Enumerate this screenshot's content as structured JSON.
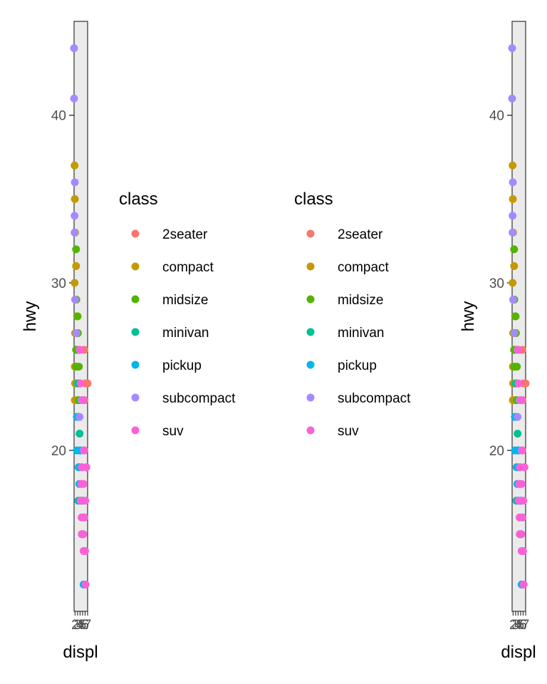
{
  "chart_data": [
    {
      "type": "scatter",
      "xlabel": "displ",
      "ylabel": "hwy",
      "ylim": [
        10.4,
        45.6
      ],
      "xlim": [
        1.6,
        7.0
      ],
      "yticks": [
        20,
        30,
        40
      ],
      "xticks": [
        2,
        3,
        4,
        5,
        6,
        7
      ],
      "xtick_labels": [
        "2",
        "3",
        "4",
        "5",
        "6",
        "7"
      ],
      "grid": false,
      "background": "#ebebeb",
      "legend": {
        "title": "class",
        "placement": "right"
      },
      "series": [
        {
          "name": "2seater",
          "color": "#F8766D",
          "x": [
            5.7,
            6.2,
            7.0,
            5.7
          ],
          "y": [
            26,
            24,
            24,
            23
          ]
        },
        {
          "name": "compact",
          "color": "#C49A00",
          "x": [
            1.8,
            1.9,
            2.0,
            2.4,
            1.8,
            2.2,
            2.8,
            3.1,
            2.0,
            2.5,
            1.9,
            2.0,
            1.9,
            2.8
          ],
          "y": [
            37,
            35,
            33,
            31,
            30,
            29,
            28,
            27,
            27,
            26,
            25,
            24,
            23,
            23
          ]
        },
        {
          "name": "midsize",
          "color": "#53B400",
          "x": [
            2.4,
            2.5,
            3.0,
            3.1,
            2.4,
            3.3,
            2.5,
            3.5,
            3.8,
            3.5
          ],
          "y": [
            32,
            29,
            28,
            27,
            26,
            26,
            25,
            25,
            24,
            23
          ]
        },
        {
          "name": "minivan",
          "color": "#00C094",
          "x": [
            3.0,
            3.3,
            3.8,
            4.0,
            3.3
          ],
          "y": [
            24,
            22,
            21,
            20,
            17
          ]
        },
        {
          "name": "pickup",
          "color": "#00B6EB",
          "x": [
            2.7,
            2.7,
            3.4,
            3.7,
            3.9,
            4.7,
            4.7,
            5.2,
            5.7,
            3.7,
            4.7,
            5.2,
            5.4,
            4.0
          ],
          "y": [
            22,
            20,
            19,
            18,
            17,
            19,
            17,
            17,
            16,
            19,
            15,
            15,
            12,
            20
          ]
        },
        {
          "name": "subcompact",
          "color": "#A58AFF",
          "x": [
            1.6,
            1.6,
            1.9,
            1.8,
            1.8,
            2.0,
            2.5,
            3.8,
            4.6,
            5.4,
            3.8
          ],
          "y": [
            44,
            41,
            36,
            34,
            33,
            29,
            27,
            26,
            23,
            20,
            22
          ]
        },
        {
          "name": "suv",
          "color": "#FB61D7",
          "x": [
            4.0,
            4.2,
            5.3,
            5.7,
            6.5,
            4.7,
            5.4,
            6.1,
            4.2,
            4.4,
            4.6,
            5.0,
            5.4,
            6.0,
            6.2,
            4.7,
            5.3,
            6.5,
            5.7,
            4.6
          ],
          "y": [
            26,
            24,
            23,
            20,
            19,
            19,
            18,
            17,
            17,
            18,
            16,
            15,
            14,
            14,
            12,
            15,
            15,
            19,
            16,
            18
          ]
        }
      ]
    },
    {
      "type": "scatter",
      "xlabel": "displ",
      "ylabel": "hwy",
      "ylim": [
        10.4,
        45.6
      ],
      "xlim": [
        1.6,
        7.0
      ],
      "yticks": [
        20,
        30,
        40
      ],
      "xticks": [
        2,
        3,
        4,
        5,
        6,
        7
      ],
      "xtick_labels": [
        "2",
        "3",
        "4",
        "5",
        "6",
        "7"
      ],
      "grid": false,
      "background": "#ebebeb",
      "legend": {
        "title": "class",
        "placement": "left"
      },
      "series": [
        {
          "name": "2seater",
          "color": "#F8766D",
          "x": [
            5.7,
            6.2,
            7.0,
            5.7
          ],
          "y": [
            26,
            24,
            24,
            23
          ]
        },
        {
          "name": "compact",
          "color": "#C49A00",
          "x": [
            1.8,
            1.9,
            2.0,
            2.4,
            1.8,
            2.2,
            2.8,
            3.1,
            2.0,
            2.5,
            1.9,
            2.0,
            1.9,
            2.8
          ],
          "y": [
            37,
            35,
            33,
            31,
            30,
            29,
            28,
            27,
            27,
            26,
            25,
            24,
            23,
            23
          ]
        },
        {
          "name": "midsize",
          "color": "#53B400",
          "x": [
            2.4,
            2.5,
            3.0,
            3.1,
            2.4,
            3.3,
            2.5,
            3.5,
            3.8,
            3.5
          ],
          "y": [
            32,
            29,
            28,
            27,
            26,
            26,
            25,
            25,
            24,
            23
          ]
        },
        {
          "name": "minivan",
          "color": "#00C094",
          "x": [
            3.0,
            3.3,
            3.8,
            4.0,
            3.3
          ],
          "y": [
            24,
            22,
            21,
            20,
            17
          ]
        },
        {
          "name": "pickup",
          "color": "#00B6EB",
          "x": [
            2.7,
            2.7,
            3.4,
            3.7,
            3.9,
            4.7,
            4.7,
            5.2,
            5.7,
            3.7,
            4.7,
            5.2,
            5.4,
            4.0
          ],
          "y": [
            22,
            20,
            19,
            18,
            17,
            19,
            17,
            17,
            16,
            19,
            15,
            15,
            12,
            20
          ]
        },
        {
          "name": "subcompact",
          "color": "#A58AFF",
          "x": [
            1.6,
            1.6,
            1.9,
            1.8,
            1.8,
            2.0,
            2.5,
            3.8,
            4.6,
            5.4,
            3.8
          ],
          "y": [
            44,
            41,
            36,
            34,
            33,
            29,
            27,
            26,
            23,
            20,
            22
          ]
        },
        {
          "name": "suv",
          "color": "#FB61D7",
          "x": [
            4.0,
            4.2,
            5.3,
            5.7,
            6.5,
            4.7,
            5.4,
            6.1,
            4.2,
            4.4,
            4.6,
            5.0,
            5.4,
            6.0,
            6.2,
            4.7,
            5.3,
            6.5,
            5.7,
            4.6
          ],
          "y": [
            26,
            24,
            23,
            20,
            19,
            19,
            18,
            17,
            17,
            18,
            16,
            15,
            14,
            14,
            12,
            15,
            15,
            19,
            16,
            18
          ]
        }
      ]
    }
  ]
}
